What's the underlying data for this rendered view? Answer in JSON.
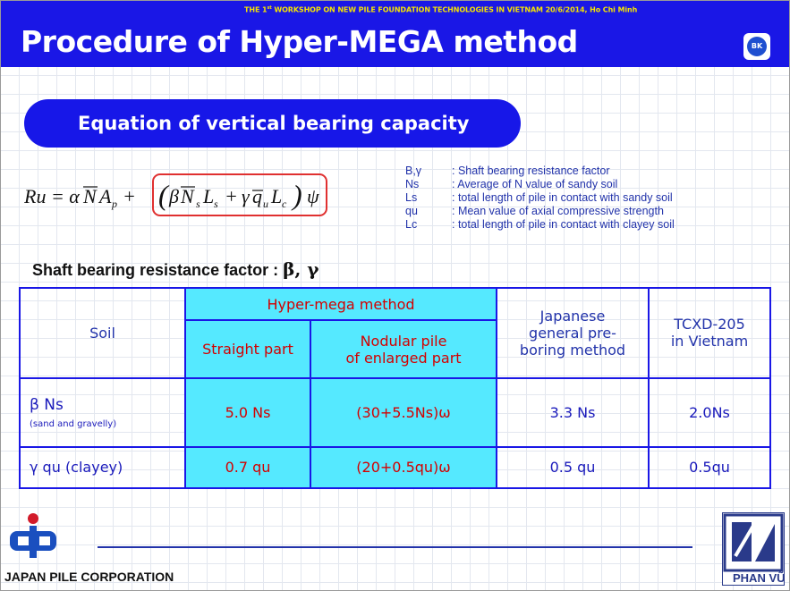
{
  "header": {
    "workshop_prefix": "THE 1",
    "workshop_sup": "st",
    "workshop_rest": " WORKSHOP ON NEW PILE FOUNDATION TECHNOLOGIES IN VIETNAM   20/6/2014, Ho Chi Minh",
    "title": "Procedure of Hyper-MEGA method",
    "logo_text": "BK"
  },
  "section": {
    "button_label": "Equation of vertical bearing capacity"
  },
  "equation": {
    "text": "Ru = αN̄Ap + (βN̄sLs + γq̄uLc) ψ"
  },
  "definitions": [
    {
      "symbol": "B,γ",
      "text": ": Shaft bearing resistance factor"
    },
    {
      "symbol": "Ns",
      "text": ": Average of N value of sandy soil"
    },
    {
      "symbol": "Ls",
      "text": ": total length of pile in contact with sandy soil"
    },
    {
      "symbol": "qu",
      "text": ": Mean value of axial compressive strength"
    },
    {
      "symbol": "Lc",
      "text": ": total length of pile in contact with clayey soil"
    }
  ],
  "subheading": {
    "label": "Shaft bearing resistance factor : ",
    "greek": "β, γ"
  },
  "table": {
    "col_soil": "Soil",
    "col_hyper": "Hyper-mega method",
    "col_straight": "Straight part",
    "col_nodular_1": "Nodular pile",
    "col_nodular_2": "of enlarged part",
    "col_japanese_1": "Japanese",
    "col_japanese_2": "general pre-",
    "col_japanese_3": "boring method",
    "col_tcxd_1": "TCXD-205",
    "col_tcxd_2": "in Vietnam",
    "row1": {
      "label": "β Ns",
      "sublabel": "(sand and gravelly)",
      "straight": "5.0 Ns",
      "nodular": "(30+5.5Ns)ω",
      "japanese": "3.3 Ns",
      "tcxd": "2.0Ns"
    },
    "row2": {
      "label": "γ qu  (clayey)",
      "straight": "0.7 qu",
      "nodular": "(20+0.5qu)ω",
      "japanese": "0.5 qu",
      "tcxd": "0.5qu"
    }
  },
  "footer": {
    "left_company": "JAPAN PILE CORPORATION",
    "right_company": "PHAN VŨ"
  }
}
